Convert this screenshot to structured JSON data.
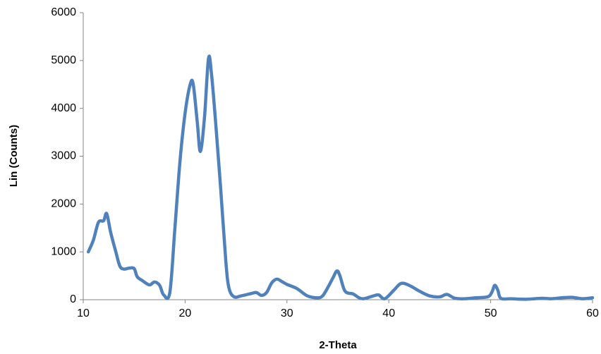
{
  "chart_data": {
    "type": "line",
    "xlabel": "2-Theta",
    "ylabel": "Lin (Counts)",
    "x": [
      10.5,
      11.0,
      11.5,
      12.0,
      12.3,
      12.7,
      13.2,
      13.6,
      14.0,
      14.5,
      15.0,
      15.3,
      15.8,
      16.5,
      17.0,
      17.5,
      17.9,
      18.5,
      19.0,
      19.5,
      20.0,
      20.5,
      20.8,
      21.2,
      21.5,
      21.9,
      22.3,
      22.6,
      23.0,
      23.5,
      24.0,
      24.3,
      24.8,
      25.5,
      26.5,
      27.0,
      27.5,
      28.0,
      28.5,
      29.0,
      29.5,
      30.0,
      31.0,
      32.0,
      33.0,
      33.5,
      34.0,
      34.5,
      34.9,
      35.2,
      35.7,
      36.5,
      37.0,
      37.5,
      38.5,
      39.0,
      39.6,
      40.5,
      41.2,
      42.0,
      43.0,
      44.0,
      45.0,
      45.7,
      46.5,
      47.5,
      48.5,
      49.7,
      50.1,
      50.4,
      50.7,
      51.0,
      52.0,
      53.5,
      55.0,
      56.0,
      57.0,
      58.0,
      59.0,
      60.0
    ],
    "series": [
      {
        "name": "Lin (Counts)",
        "color": "#4f81bd",
        "values": [
          1000,
          1250,
          1620,
          1650,
          1800,
          1400,
          1000,
          700,
          640,
          660,
          650,
          480,
          400,
          310,
          370,
          300,
          100,
          150,
          1500,
          2900,
          3900,
          4500,
          4500,
          3700,
          3100,
          3800,
          5050,
          4700,
          3700,
          2300,
          800,
          250,
          60,
          80,
          130,
          150,
          90,
          150,
          350,
          430,
          380,
          320,
          230,
          80,
          40,
          80,
          250,
          450,
          600,
          500,
          180,
          120,
          50,
          20,
          80,
          100,
          20,
          200,
          340,
          300,
          180,
          80,
          60,
          110,
          30,
          20,
          40,
          60,
          150,
          300,
          200,
          30,
          20,
          10,
          30,
          20,
          40,
          50,
          20,
          40
        ]
      }
    ],
    "xlim": [
      10,
      60
    ],
    "xticks": [
      10,
      20,
      30,
      40,
      50,
      60
    ],
    "ylim": [
      0,
      6000
    ],
    "yticks": [
      0,
      1000,
      2000,
      3000,
      4000,
      5000,
      6000
    ],
    "grid": false
  }
}
